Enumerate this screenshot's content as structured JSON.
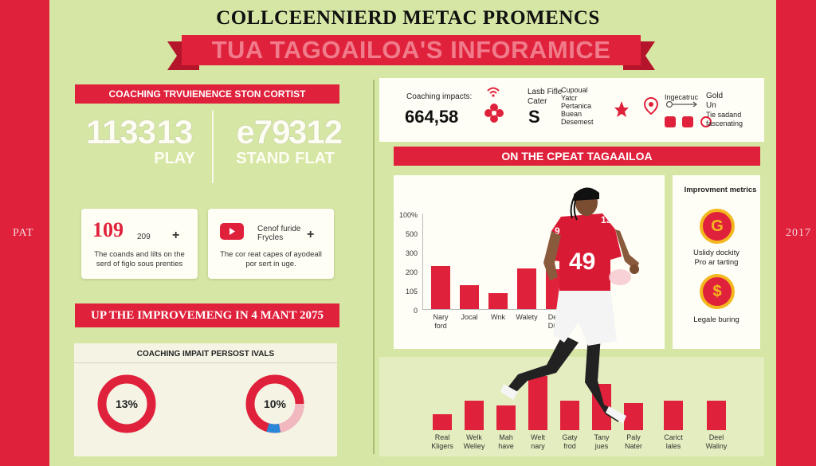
{
  "header": {
    "title": "COLLCEENNIERD METAC PROMENCS",
    "ribbon": "TUA TAGOAILOA'S INFORAMICE"
  },
  "side": {
    "left_label": "PAT",
    "right_label": "2017"
  },
  "coaching_stats": {
    "heading": "COACHING TRVUIENENCE STON CORTIST",
    "stats": [
      {
        "value": "1133",
        "label": ""
      },
      {
        "value": "13",
        "label": "PLAY"
      },
      {
        "value": "e79",
        "label": "STAND"
      },
      {
        "value": "312",
        "label": "FLAT"
      }
    ]
  },
  "cards": [
    {
      "big": "109",
      "small": "209",
      "plus": "+",
      "desc": "The coands and lilts on the\nserd of figlo sous prenties"
    },
    {
      "big": "",
      "small": "Cenof furide\nFrycles",
      "plus": "+",
      "desc": "The cor reat capes of ayodeall\npor sert in uge."
    }
  ],
  "improvement_banner": "UP THE IMPROVEMENG IN 4 MANT 2075",
  "donut_panel": {
    "heading": "COACHING IMPAIT PERSOST IVALS",
    "donuts": [
      {
        "label": "13%",
        "value": 13
      },
      {
        "label": "10%",
        "value": 10
      }
    ]
  },
  "impacts": {
    "label": "Coaching impacts:",
    "value": "664,58",
    "mid_label": "Lasb Fifle\nCater",
    "mid_value": "S",
    "list": [
      "Cupoual\nYatcr",
      "Pertanica\nBuean",
      "Desemest"
    ],
    "right_label": "Ingecatruc",
    "right_list": [
      "Gold",
      "Un",
      "Tie sadand\nfascenating"
    ]
  },
  "colors": {
    "accent": "#e0213b",
    "background": "#d6e6a4",
    "gold": "#f3b81f"
  },
  "chart_banner": "ON THE CPEAT TAGAAILOA",
  "improvement_metrics": {
    "heading": "Improvment metrics",
    "items": [
      {
        "icon": "G",
        "text": "Uslidy dockity\nPro ar tarting"
      },
      {
        "icon": "$",
        "text": "Legale buring"
      }
    ]
  },
  "chart_data": [
    {
      "type": "bar",
      "yticks": [
        "100%",
        "500",
        "300",
        "200",
        "105",
        "0"
      ],
      "categories": [
        "Nary\nford",
        "Jocal",
        "Wnk",
        "Walety",
        "Deol\nDing"
      ],
      "values": [
        190,
        105,
        70,
        180,
        175
      ],
      "ylim": [
        0,
        420
      ]
    },
    {
      "type": "bar",
      "categories": [
        "Real\nKligers",
        "Welk\nWeliey",
        "Mah\nhave",
        "Welt\nnary",
        "Gaty\nfrod",
        "Tany\njues",
        "Paly\nNater",
        "Carict\nlales",
        "Deel\nWaliny"
      ],
      "values": [
        30,
        55,
        45,
        100,
        55,
        85,
        50,
        55,
        55
      ],
      "ylim": [
        0,
        110
      ]
    }
  ]
}
